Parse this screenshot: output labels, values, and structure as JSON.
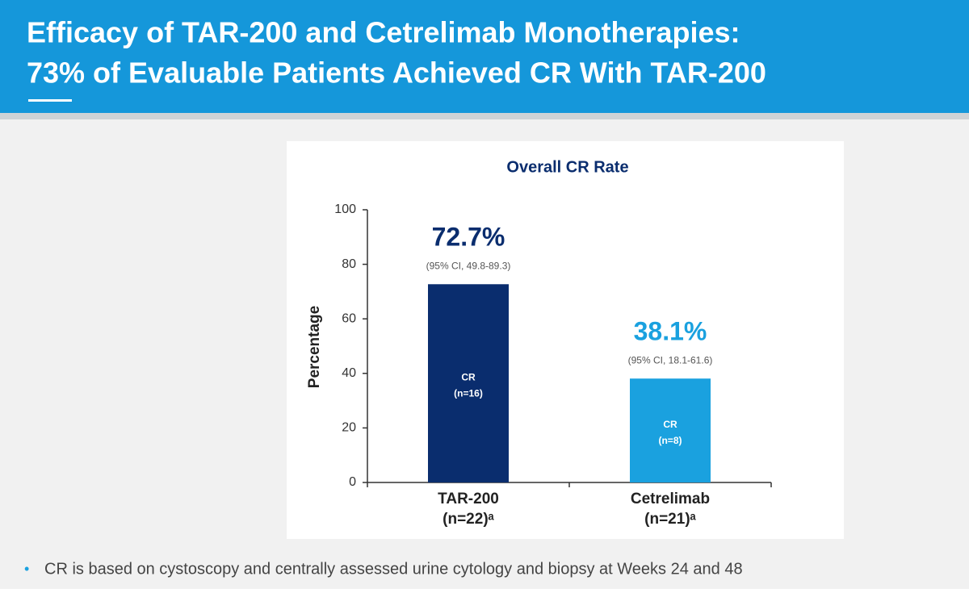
{
  "slide": {
    "title": [
      "Efficacy of TAR-200 and Cetrelimab Monotherapies:",
      "73% of Evaluable Patients Achieved CR With TAR-200"
    ],
    "footnote": "CR is based on cystoscopy and centrally assessed urine cytology and biopsy at Weeks 24 and 48"
  },
  "chart_data": {
    "type": "bar",
    "title": "Overall CR Rate",
    "y_label": "Percentage",
    "categories": [
      "TAR-200",
      "Cetrelimab"
    ],
    "category_sublabels": [
      "(n=22)ᵃ",
      "(n=21)ᵃ"
    ],
    "values": [
      72.7,
      38.1
    ],
    "value_labels": [
      "72.7%",
      "38.1%"
    ],
    "ci_labels": [
      "(95% CI, 49.8-89.3)",
      "(95% CI, 18.1-61.6)"
    ],
    "bar_labels": [
      [
        "CR",
        "(n=16)"
      ],
      [
        "CR",
        "(n=8)"
      ]
    ],
    "colors": [
      "#0a2d6e",
      "#1aa1df"
    ],
    "ylim": [
      0,
      100
    ],
    "yticks": [
      0,
      20,
      40,
      60,
      80,
      100
    ]
  }
}
